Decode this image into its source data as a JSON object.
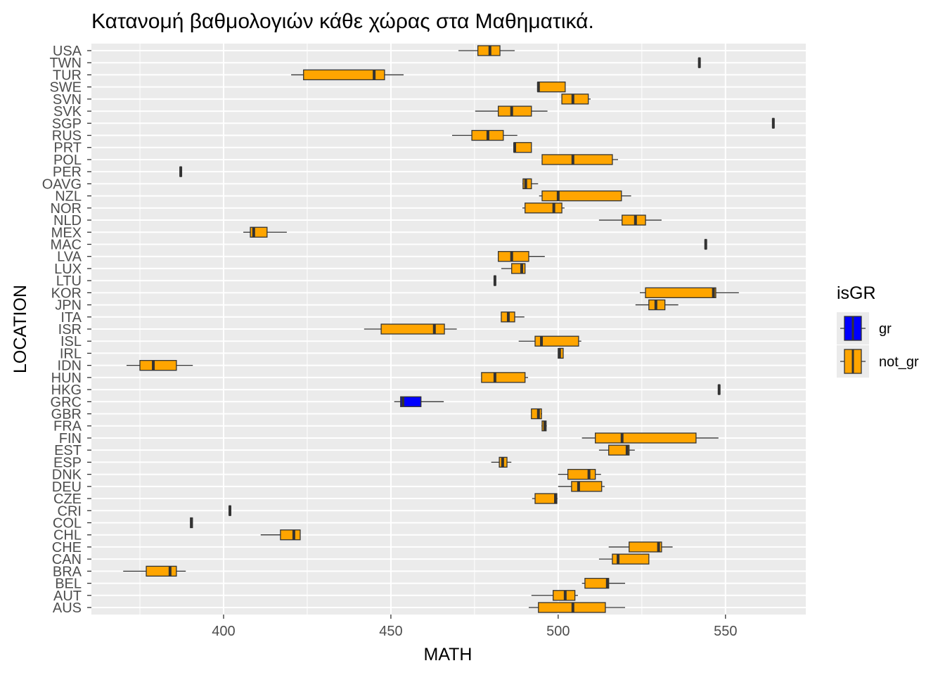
{
  "chart_data": {
    "type": "boxplot",
    "orientation": "horizontal",
    "title": "Κατανομή βαθμολογιών κάθε χώρας στα Μαθηματικά.",
    "xlabel": "MATH",
    "ylabel": "LOCATION",
    "xlim": [
      360.5,
      574
    ],
    "xticks": [
      400,
      450,
      500,
      550
    ],
    "grid": true,
    "legend": {
      "title": "isGR",
      "position": "right",
      "entries": [
        {
          "label": "gr",
          "color": "#0000ff"
        },
        {
          "label": "not_gr",
          "color": "#ffa500"
        }
      ]
    },
    "categories": [
      "USA",
      "TWN",
      "TUR",
      "SWE",
      "SVN",
      "SVK",
      "SGP",
      "RUS",
      "PRT",
      "POL",
      "PER",
      "OAVG",
      "NZL",
      "NOR",
      "NLD",
      "MEX",
      "MAC",
      "LVA",
      "LUX",
      "LTU",
      "KOR",
      "JPN",
      "ITA",
      "ISR",
      "ISL",
      "IRL",
      "IDN",
      "HUN",
      "HKG",
      "GRC",
      "GBR",
      "FRA",
      "FIN",
      "EST",
      "ESP",
      "DNK",
      "DEU",
      "CZE",
      "CRI",
      "COL",
      "CHL",
      "CHE",
      "CAN",
      "BRA",
      "BEL",
      "AUT",
      "AUS"
    ],
    "boxes": [
      {
        "location": "USA",
        "group": "not_gr",
        "min": 470.2,
        "q1": 476.0,
        "median": 479.6,
        "q3": 482.6,
        "max": 487.0
      },
      {
        "location": "TWN",
        "group": "not_gr",
        "min": 542.0,
        "q1": 542.0,
        "median": 542.2,
        "q3": 542.4,
        "max": 542.4
      },
      {
        "location": "TUR",
        "group": "not_gr",
        "min": 420.2,
        "q1": 423.9,
        "median": 445.0,
        "q3": 448.1,
        "max": 453.8
      },
      {
        "location": "SWE",
        "group": "not_gr",
        "min": 493.9,
        "q1": 493.9,
        "median": 494.1,
        "q3": 502.1,
        "max": 502.1
      },
      {
        "location": "SVN",
        "group": "not_gr",
        "min": 501.1,
        "q1": 501.1,
        "median": 504.4,
        "q3": 509.0,
        "max": 509.7
      },
      {
        "location": "SVK",
        "group": "not_gr",
        "min": 475.2,
        "q1": 482.1,
        "median": 486.1,
        "q3": 492.0,
        "max": 496.8
      },
      {
        "location": "SGP",
        "group": "not_gr",
        "min": 564.1,
        "q1": 564.1,
        "median": 564.3,
        "q3": 564.5,
        "max": 564.5
      },
      {
        "location": "RUS",
        "group": "not_gr",
        "min": 468.3,
        "q1": 474.2,
        "median": 479.0,
        "q3": 483.6,
        "max": 487.8
      },
      {
        "location": "PRT",
        "group": "not_gr",
        "min": 486.8,
        "q1": 486.8,
        "median": 487.0,
        "q3": 492.0,
        "max": 492.0
      },
      {
        "location": "POL",
        "group": "not_gr",
        "min": 495.2,
        "q1": 495.2,
        "median": 504.4,
        "q3": 516.2,
        "max": 517.9
      },
      {
        "location": "PER",
        "group": "not_gr",
        "min": 387.0,
        "q1": 387.0,
        "median": 387.2,
        "q3": 387.4,
        "max": 387.4
      },
      {
        "location": "OAVG",
        "group": "not_gr",
        "min": 489.3,
        "q1": 489.5,
        "median": 490.3,
        "q3": 492.0,
        "max": 494.0
      },
      {
        "location": "NZL",
        "group": "not_gr",
        "min": 494.3,
        "q1": 495.2,
        "median": 500.0,
        "q3": 518.9,
        "max": 521.8
      },
      {
        "location": "NOR",
        "group": "not_gr",
        "min": 489.3,
        "q1": 490.1,
        "median": 498.7,
        "q3": 501.1,
        "max": 501.9
      },
      {
        "location": "NLD",
        "group": "not_gr",
        "min": 512.2,
        "q1": 519.1,
        "median": 523.1,
        "q3": 526.1,
        "max": 530.9
      },
      {
        "location": "MEX",
        "group": "not_gr",
        "min": 405.9,
        "q1": 408.0,
        "median": 409.0,
        "q3": 413.0,
        "max": 418.9
      },
      {
        "location": "MAC",
        "group": "not_gr",
        "min": 543.9,
        "q1": 543.9,
        "median": 544.1,
        "q3": 544.3,
        "max": 544.3
      },
      {
        "location": "LVA",
        "group": "not_gr",
        "min": 482.1,
        "q1": 482.1,
        "median": 486.1,
        "q3": 491.2,
        "max": 496.0
      },
      {
        "location": "LUX",
        "group": "not_gr",
        "min": 483.0,
        "q1": 486.1,
        "median": 489.1,
        "q3": 490.1,
        "max": 490.1
      },
      {
        "location": "LTU",
        "group": "not_gr",
        "min": 480.9,
        "q1": 480.9,
        "median": 481.1,
        "q3": 481.3,
        "max": 481.3
      },
      {
        "location": "KOR",
        "group": "not_gr",
        "min": 524.4,
        "q1": 526.1,
        "median": 546.4,
        "q3": 547.1,
        "max": 554.0
      },
      {
        "location": "JPN",
        "group": "not_gr",
        "min": 523.1,
        "q1": 527.1,
        "median": 529.2,
        "q3": 531.9,
        "max": 535.9
      },
      {
        "location": "ITA",
        "group": "not_gr",
        "min": 483.0,
        "q1": 483.0,
        "median": 485.1,
        "q3": 487.0,
        "max": 489.9
      },
      {
        "location": "ISR",
        "group": "not_gr",
        "min": 442.0,
        "q1": 447.1,
        "median": 463.0,
        "q3": 466.0,
        "max": 469.7
      },
      {
        "location": "ISL",
        "group": "not_gr",
        "min": 488.2,
        "q1": 493.1,
        "median": 495.0,
        "q3": 506.1,
        "max": 506.9
      },
      {
        "location": "IRL",
        "group": "not_gr",
        "min": 500.0,
        "q1": 500.0,
        "median": 500.4,
        "q3": 501.5,
        "max": 501.5
      },
      {
        "location": "IDN",
        "group": "not_gr",
        "min": 371.0,
        "q1": 375.0,
        "median": 379.0,
        "q3": 385.9,
        "max": 390.8
      },
      {
        "location": "HUN",
        "group": "not_gr",
        "min": 477.1,
        "q1": 477.1,
        "median": 481.1,
        "q3": 490.1,
        "max": 491.0
      },
      {
        "location": "HKG",
        "group": "not_gr",
        "min": 547.9,
        "q1": 547.9,
        "median": 548.1,
        "q3": 548.3,
        "max": 548.3
      },
      {
        "location": "GRC",
        "group": "gr",
        "min": 451.0,
        "q1": 452.9,
        "median": 453.6,
        "q3": 459.0,
        "max": 465.8
      },
      {
        "location": "GBR",
        "group": "not_gr",
        "min": 492.0,
        "q1": 492.0,
        "median": 494.1,
        "q3": 495.0,
        "max": 495.2
      },
      {
        "location": "FRA",
        "group": "not_gr",
        "min": 495.0,
        "q1": 495.2,
        "median": 496.0,
        "q3": 496.4,
        "max": 496.6
      },
      {
        "location": "FIN",
        "group": "not_gr",
        "min": 507.1,
        "q1": 511.1,
        "median": 519.1,
        "q3": 541.2,
        "max": 547.9
      },
      {
        "location": "EST",
        "group": "not_gr",
        "min": 512.2,
        "q1": 515.1,
        "median": 520.6,
        "q3": 521.2,
        "max": 522.9
      },
      {
        "location": "ESP",
        "group": "not_gr",
        "min": 480.0,
        "q1": 482.4,
        "median": 483.4,
        "q3": 484.7,
        "max": 486.0
      },
      {
        "location": "DNK",
        "group": "not_gr",
        "min": 500.0,
        "q1": 502.9,
        "median": 509.2,
        "q3": 511.1,
        "max": 512.8
      },
      {
        "location": "DEU",
        "group": "not_gr",
        "min": 500.0,
        "q1": 504.0,
        "median": 506.1,
        "q3": 513.0,
        "max": 513.9
      },
      {
        "location": "CZE",
        "group": "not_gr",
        "min": 492.2,
        "q1": 493.1,
        "median": 499.2,
        "q3": 499.6,
        "max": 499.8
      },
      {
        "location": "CRI",
        "group": "not_gr",
        "min": 401.7,
        "q1": 401.7,
        "median": 401.9,
        "q3": 402.1,
        "max": 402.1
      },
      {
        "location": "COL",
        "group": "not_gr",
        "min": 390.1,
        "q1": 390.1,
        "median": 390.4,
        "q3": 390.7,
        "max": 390.7
      },
      {
        "location": "CHL",
        "group": "not_gr",
        "min": 411.1,
        "q1": 417.0,
        "median": 421.0,
        "q3": 422.9,
        "max": 422.9
      },
      {
        "location": "CHE",
        "group": "not_gr",
        "min": 515.1,
        "q1": 521.2,
        "median": 530.0,
        "q3": 530.9,
        "max": 534.2
      },
      {
        "location": "CAN",
        "group": "not_gr",
        "min": 512.2,
        "q1": 516.2,
        "median": 517.9,
        "q3": 527.1,
        "max": 527.1
      },
      {
        "location": "BRA",
        "group": "not_gr",
        "min": 370.0,
        "q1": 376.9,
        "median": 384.0,
        "q3": 385.9,
        "max": 388.7
      },
      {
        "location": "BEL",
        "group": "not_gr",
        "min": 507.1,
        "q1": 508.0,
        "median": 514.7,
        "q3": 515.1,
        "max": 520.0
      },
      {
        "location": "AUT",
        "group": "not_gr",
        "min": 492.0,
        "q1": 498.5,
        "median": 502.1,
        "q3": 505.0,
        "max": 505.9
      },
      {
        "location": "AUS",
        "group": "not_gr",
        "min": 491.2,
        "q1": 494.1,
        "median": 504.4,
        "q3": 514.1,
        "max": 520.0
      }
    ]
  }
}
